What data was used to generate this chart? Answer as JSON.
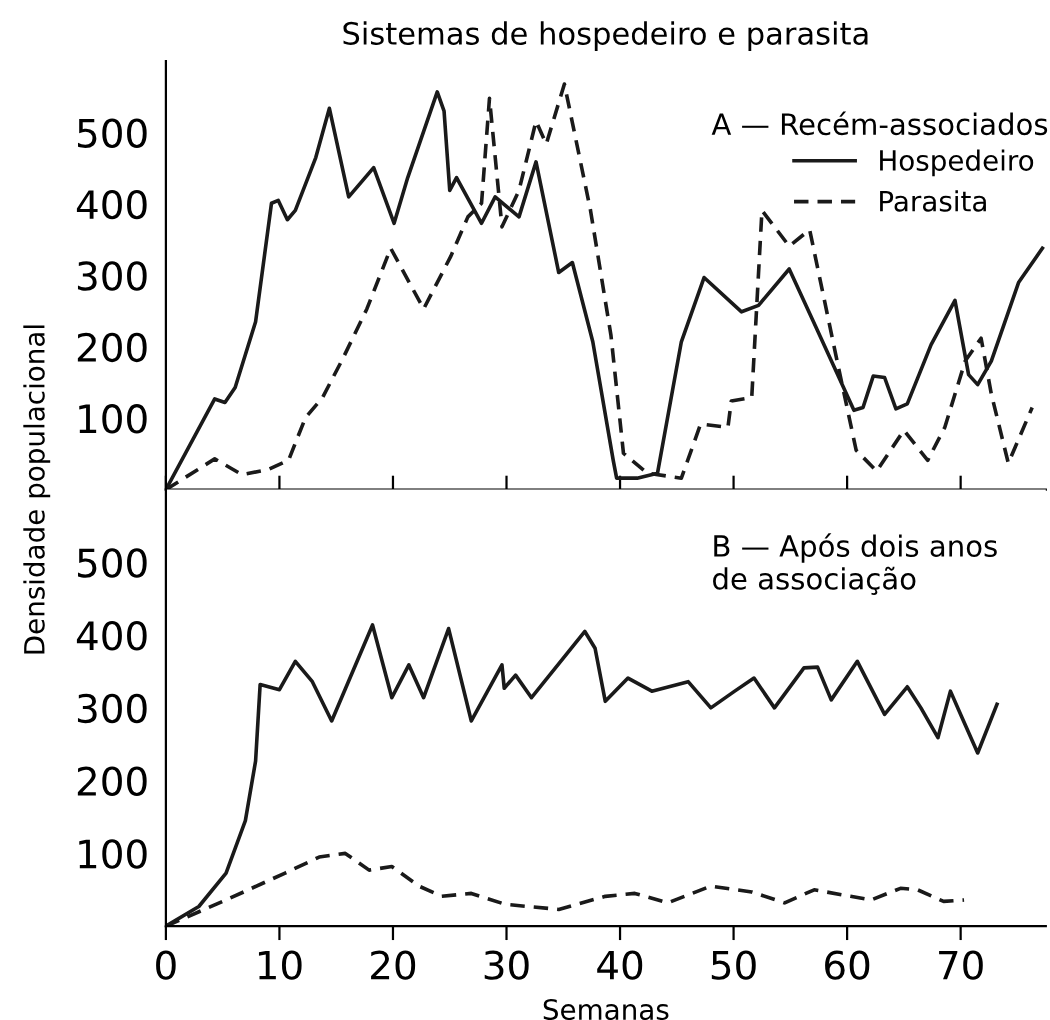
{
  "chart_data": [
    {
      "type": "line",
      "title": "Sistemas de hospedeiro e parasita",
      "ylabel": "Densidade populacional",
      "annotations": [
        "A — Recém-associados"
      ],
      "series": [
        {
          "name": "Hospedeiro",
          "color": "#1a1a1a",
          "line_style": "solid",
          "x": [
            0,
            4.3,
            5.2,
            6.1,
            7.9,
            9.3,
            9.9,
            10.7,
            11.4,
            13.2,
            14.4,
            16.1,
            18.3,
            20.1,
            21.3,
            23.9,
            24.5,
            25,
            25.6,
            27.8,
            29,
            31.1,
            32.6,
            34.6,
            35.8,
            37.6,
            39.4,
            39.7,
            41.5,
            43.3,
            45.4,
            47.4,
            50.7,
            52.2,
            54.9,
            57.3,
            60.6,
            61.4,
            62.3,
            63.3,
            64.3,
            65.3,
            67.4,
            69.5,
            70.7,
            71.5,
            72.7,
            75.1,
            77.2
          ],
          "values": [
            0,
            127,
            122,
            143,
            235,
            401,
            405,
            378,
            391,
            465,
            534,
            410,
            451,
            373,
            437,
            557,
            530,
            419,
            437,
            373,
            410,
            382,
            459,
            304,
            318,
            207,
            41,
            16,
            16,
            23,
            207,
            297,
            249,
            258,
            309,
            226,
            111,
            115,
            159,
            157,
            113,
            120,
            203,
            265,
            161,
            147,
            180,
            290,
            338
          ]
        },
        {
          "name": "Parasita",
          "color": "#1a1a1a",
          "line_style": "dashed",
          "x": [
            0,
            4.3,
            6.7,
            9,
            10.8,
            12.3,
            13.8,
            15.6,
            17.7,
            19.8,
            22.7,
            25.1,
            26.6,
            27.8,
            28.5,
            29.6,
            31.1,
            32.6,
            33.5,
            35.1,
            37.4,
            39.2,
            40.3,
            42.4,
            45.4,
            47.1,
            49.5,
            49.8,
            51.6,
            52.5,
            54.9,
            56.7,
            59,
            60.8,
            62.6,
            65,
            67.1,
            68.6,
            70.4,
            71.8,
            72.7,
            74.2,
            76.3
          ],
          "values": [
            0,
            43,
            21,
            28,
            41,
            101,
            129,
            184,
            253,
            338,
            253,
            327,
            382,
            401,
            548,
            368,
            419,
            516,
            484,
            568,
            391,
            216,
            51,
            23,
            16,
            92,
            87,
            124,
            129,
            391,
            341,
            364,
            189,
            55,
            26,
            83,
            41,
            87,
            180,
            212,
            134,
            37,
            115
          ]
        }
      ],
      "xlim": [
        0,
        77.5
      ],
      "ylim": [
        0,
        600
      ],
      "xticks": [
        {
          "value": 0,
          "label": null
        },
        {
          "value": 10,
          "label": null
        },
        {
          "value": 20,
          "label": null
        },
        {
          "value": 30,
          "label": null
        },
        {
          "value": 40,
          "label": null
        },
        {
          "value": 50,
          "label": null
        },
        {
          "value": 60,
          "label": null
        },
        {
          "value": 70,
          "label": null
        }
      ],
      "yticks": [
        100,
        200,
        300,
        400,
        500
      ],
      "tick_labels": "y",
      "legend": "top right",
      "grid": false
    },
    {
      "type": "line",
      "xlabel": "Semanas",
      "annotations": [
        "B — Após dois anos\nde associação"
      ],
      "series": [
        {
          "color": "#1a1a1a",
          "line_style": "solid",
          "x": [
            0,
            2.9,
            5.3,
            7,
            7.9,
            8.3,
            10,
            11.4,
            12.9,
            14.6,
            18.2,
            19.9,
            21.4,
            22.7,
            24.9,
            26.9,
            29.6,
            29.8,
            30.8,
            32.2,
            36.9,
            37.8,
            38.7,
            40.7,
            42.8,
            46,
            48,
            50.1,
            51.8,
            53.6,
            56.2,
            57.4,
            58.6,
            60.9,
            63.3,
            65.3,
            66.5,
            68,
            69.1,
            70,
            71.5,
            73.2
          ],
          "values": [
            0,
            27,
            73,
            145,
            227,
            332,
            325,
            364,
            336,
            282,
            414,
            314,
            359,
            314,
            409,
            282,
            359,
            327,
            345,
            314,
            405,
            382,
            309,
            341,
            323,
            336,
            300,
            323,
            341,
            300,
            355,
            356,
            311,
            364,
            291,
            329,
            300,
            259,
            323,
            291,
            238,
            305
          ]
        },
        {
          "color": "#1a1a1a",
          "line_style": "dashed",
          "x": [
            0,
            5.3,
            10.5,
            13.5,
            15.8,
            17.9,
            19.9,
            22.3,
            24.3,
            26.9,
            29.9,
            34.6,
            38.7,
            41.3,
            44.2,
            48,
            51.6,
            54.5,
            57.1,
            60.3,
            62.1,
            64.7,
            66.2,
            68.5,
            70.3
          ],
          "values": [
            0,
            36,
            73,
            95,
            100,
            77,
            82,
            55,
            41,
            45,
            30,
            23,
            41,
            45,
            32,
            55,
            47,
            32,
            50,
            41,
            36,
            52,
            50,
            34,
            36
          ]
        }
      ],
      "xlim": [
        0,
        77.5
      ],
      "ylim": [
        0,
        600
      ],
      "xticks": [
        0,
        10,
        20,
        30,
        40,
        50,
        60,
        70
      ],
      "yticks": [
        100,
        200,
        300,
        400,
        500
      ],
      "grid": false
    }
  ]
}
